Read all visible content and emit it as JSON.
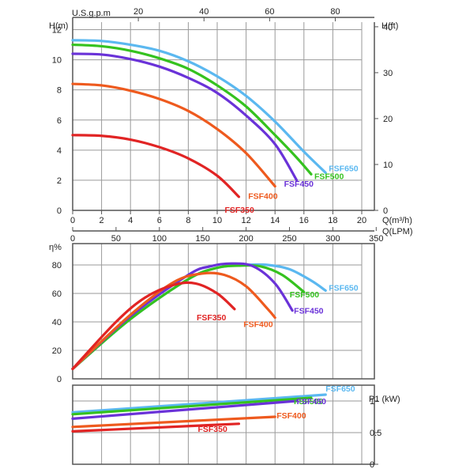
{
  "chart_data": [
    {
      "type": "line",
      "title": "",
      "ylabel": "H(m)",
      "ylabel_right": "H(ft)",
      "xlabel": "Q(m³/h)",
      "xlabel_lpm": "Q(LPM)",
      "xlabel_top": "U.S.g.p.m",
      "xlim": [
        0,
        20
      ],
      "ylim": [
        0,
        12.5
      ],
      "x_ticks": [
        "0",
        "2",
        "4",
        "6",
        "8",
        "10",
        "12",
        "14",
        "16",
        "18",
        "20"
      ],
      "y_ticks": [
        "0",
        "2",
        "4",
        "6",
        "8",
        "10",
        "12"
      ],
      "right_ticks": [
        "0",
        "10",
        "20",
        "30",
        "40"
      ],
      "top_ticks": [
        "20",
        "40",
        "60",
        "80"
      ],
      "lpm_ticks": [
        "0",
        "50",
        "100",
        "150",
        "200",
        "250",
        "300",
        "350"
      ],
      "grid": true,
      "series": [
        {
          "name": "FSF650",
          "color": "#5bb8f0",
          "x": [
            0,
            2,
            4,
            6,
            8,
            10,
            12,
            14,
            16,
            17.5
          ],
          "y": [
            11.3,
            11.25,
            11.0,
            10.6,
            9.9,
            8.9,
            7.6,
            5.9,
            3.9,
            2.5
          ]
        },
        {
          "name": "FSF500",
          "color": "#35c21f",
          "x": [
            0,
            2,
            4,
            6,
            8,
            10,
            12,
            14,
            15.5,
            16.5
          ],
          "y": [
            11.0,
            10.9,
            10.6,
            10.1,
            9.4,
            8.3,
            6.9,
            5.0,
            3.5,
            2.4
          ]
        },
        {
          "name": "FSF450",
          "color": "#6a32d8",
          "x": [
            0,
            2,
            4,
            6,
            8,
            10,
            12,
            14,
            15.5
          ],
          "y": [
            10.4,
            10.35,
            10.05,
            9.55,
            8.8,
            7.8,
            6.3,
            4.4,
            2.0
          ]
        },
        {
          "name": "FSF400",
          "color": "#ee5a1e",
          "x": [
            0,
            2,
            4,
            6,
            8,
            10,
            12,
            14
          ],
          "y": [
            8.4,
            8.3,
            7.95,
            7.4,
            6.6,
            5.4,
            3.8,
            1.6
          ]
        },
        {
          "name": "FSF350",
          "color": "#e12424",
          "x": [
            0,
            2,
            4,
            6,
            8,
            10,
            11.5
          ],
          "y": [
            5.0,
            4.95,
            4.7,
            4.2,
            3.45,
            2.3,
            0.9
          ]
        }
      ]
    },
    {
      "type": "line",
      "title": "",
      "ylabel": "η%",
      "xlim": [
        0,
        20
      ],
      "ylim": [
        0,
        95
      ],
      "y_ticks": [
        "0",
        "20",
        "40",
        "60",
        "80"
      ],
      "grid": true,
      "series": [
        {
          "name": "FSF650",
          "color": "#5bb8f0",
          "x": [
            0,
            4,
            8,
            10,
            12,
            13.5,
            15,
            16.5,
            17.5
          ],
          "y": [
            7,
            42,
            70,
            78,
            80,
            80,
            77,
            69,
            62
          ]
        },
        {
          "name": "FSF500",
          "color": "#35c21f",
          "x": [
            0,
            4,
            8,
            10,
            11.5,
            13,
            14.5,
            16
          ],
          "y": [
            7,
            42,
            70,
            78,
            79.5,
            79,
            73,
            61
          ]
        },
        {
          "name": "FSF450",
          "color": "#6a32d8",
          "x": [
            0,
            4,
            8,
            9.5,
            11,
            12.5,
            14,
            15.2
          ],
          "y": [
            7,
            44,
            73,
            79,
            81,
            79,
            67,
            48
          ]
        },
        {
          "name": "FSF400",
          "color": "#ee5a1e",
          "x": [
            0,
            4,
            7,
            9,
            10.5,
            12,
            13.5,
            14
          ],
          "y": [
            7,
            45,
            68,
            74,
            73,
            65,
            49,
            43
          ]
        },
        {
          "name": "FSF350",
          "color": "#e12424",
          "x": [
            0,
            3,
            5,
            7,
            8.5,
            10,
            11.2
          ],
          "y": [
            7,
            40,
            57,
            66,
            67,
            60,
            49
          ]
        }
      ]
    },
    {
      "type": "line",
      "title": "",
      "ylabel": "P1 (kW)",
      "xlim": [
        0,
        20
      ],
      "ylim": [
        0,
        1.25
      ],
      "y_ticks": [
        "0",
        "0.5",
        "1"
      ],
      "grid": true,
      "series": [
        {
          "name": "FSF650",
          "color": "#5bb8f0",
          "x": [
            0,
            17.5
          ],
          "y": [
            0.82,
            1.1
          ]
        },
        {
          "name": "FSF500",
          "color": "#35c21f",
          "x": [
            0,
            16.5
          ],
          "y": [
            0.79,
            1.05
          ]
        },
        {
          "name": "FSF450",
          "color": "#6a32d8",
          "x": [
            0,
            15.5
          ],
          "y": [
            0.72,
            1.0
          ]
        },
        {
          "name": "FSF400",
          "color": "#ee5a1e",
          "x": [
            0,
            14
          ],
          "y": [
            0.59,
            0.75
          ]
        },
        {
          "name": "FSF350",
          "color": "#e12424",
          "x": [
            0,
            11.5
          ],
          "y": [
            0.52,
            0.64
          ]
        }
      ]
    }
  ]
}
